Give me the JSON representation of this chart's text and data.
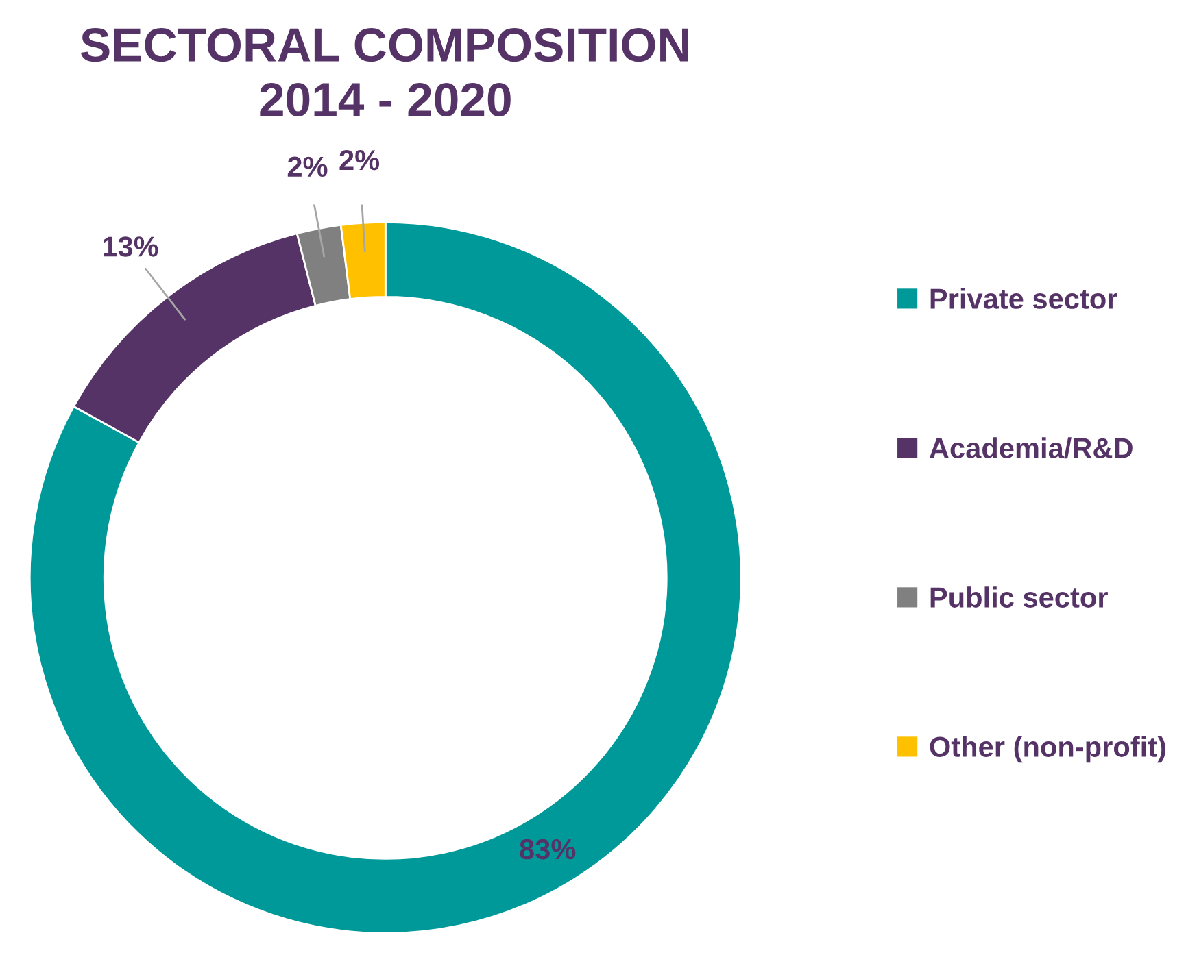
{
  "chart_data": {
    "type": "donut",
    "title": "SECTORAL COMPOSITION\n2014 - 2020",
    "categories": [
      "Private sector",
      "Academia/R&D",
      "Public sector",
      "Other (non-profit)"
    ],
    "values": [
      83,
      13,
      2,
      2
    ],
    "value_labels": [
      "83%",
      "13%",
      "2%",
      "2%"
    ],
    "colors": [
      "#009999",
      "#553366",
      "#808080",
      "#ffc000"
    ],
    "legend": "right"
  }
}
